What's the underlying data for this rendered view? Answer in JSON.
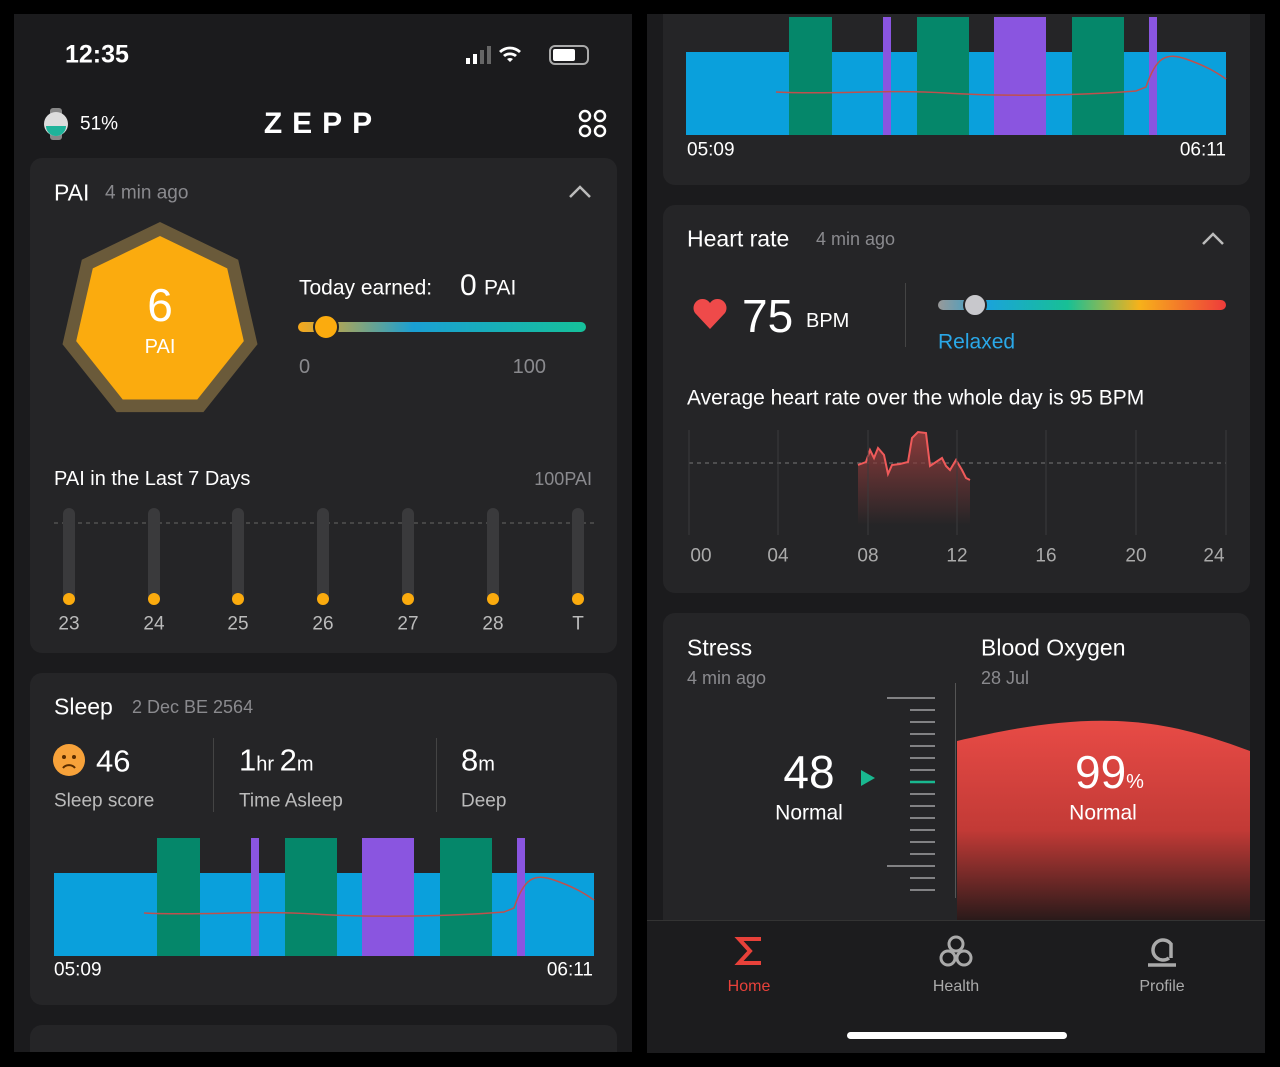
{
  "left": {
    "status": {
      "time": "12:35"
    },
    "header": {
      "battery": "51%",
      "logo": "ZEPP"
    },
    "pai": {
      "title": "PAI",
      "time": "4 min ago",
      "score": "6",
      "unit": "PAI",
      "today_label": "Today earned:",
      "today_value": "0",
      "today_unit": "PAI",
      "range_min": "0",
      "range_max": "100",
      "week_title": "PAI in the Last 7 Days",
      "week_max": "100PAI",
      "days": [
        "23",
        "24",
        "25",
        "26",
        "27",
        "28",
        "T"
      ]
    },
    "sleep": {
      "title": "Sleep",
      "date": "2 Dec BE 2564",
      "score": "46",
      "score_label": "Sleep score",
      "asleep_hr": "1",
      "asleep_hr_unit": "hr",
      "asleep_min": "2",
      "asleep_min_unit": "m",
      "asleep_label": "Time Asleep",
      "deep": "8",
      "deep_unit": "m",
      "deep_label": "Deep",
      "start": "05:09",
      "end": "06:11"
    }
  },
  "right": {
    "sleep_chart": {
      "start": "05:09",
      "end": "06:11"
    },
    "heart_rate": {
      "title": "Heart rate",
      "time": "4 min ago",
      "bpm": "75",
      "unit": "BPM",
      "zone": "Relaxed",
      "average": "Average heart rate over the whole day is 95 BPM",
      "hours": [
        "00",
        "04",
        "08",
        "12",
        "16",
        "20",
        "24"
      ]
    },
    "stress": {
      "title": "Stress",
      "time": "4 min ago",
      "value": "48",
      "status": "Normal"
    },
    "blood_oxygen": {
      "title": "Blood Oxygen",
      "date": "28 Jul",
      "value": "99",
      "unit": "%",
      "status": "Normal"
    },
    "tabs": [
      "Home",
      "Health",
      "Profile"
    ]
  }
}
